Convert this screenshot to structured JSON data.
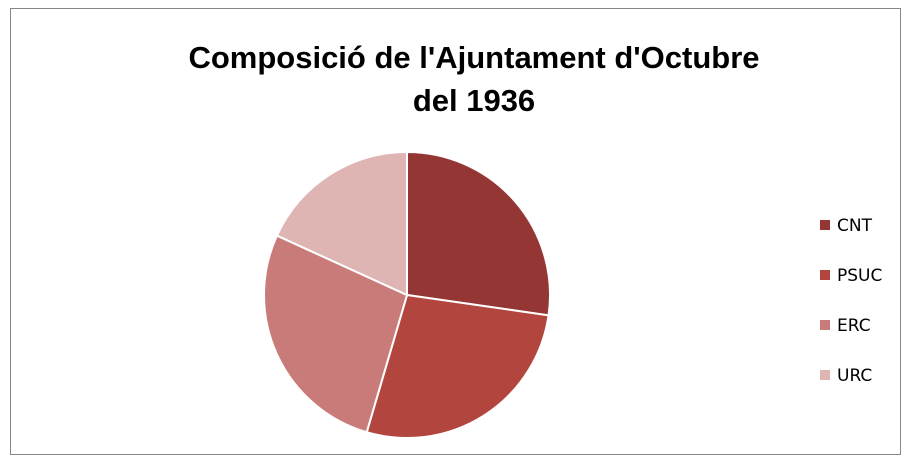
{
  "chart_data": {
    "type": "pie",
    "title": [
      "Composició de l'Ajuntament d'Octubre",
      "del 1936"
    ],
    "categories": [
      "CNT",
      "PSUC",
      "ERC",
      "URC"
    ],
    "values": [
      3,
      3,
      3,
      2
    ],
    "colors": [
      "#943634",
      "#b3453f",
      "#c97b79",
      "#dfb5b4"
    ],
    "legend": "right"
  }
}
